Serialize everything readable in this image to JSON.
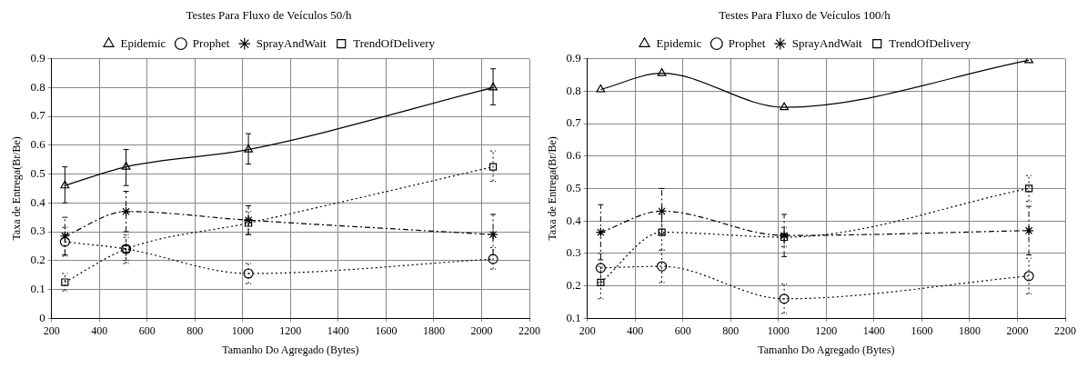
{
  "chart_data": [
    {
      "type": "line",
      "title": "Testes Para Fluxo de Veículos 50/h",
      "xlabel": "Tamanho Do Agregado (Bytes)",
      "ylabel": "Taxa de Entrega(Br/Be)",
      "x": [
        256,
        512,
        1024,
        2048
      ],
      "xlim": [
        200,
        2200
      ],
      "xticks": [
        200,
        400,
        600,
        800,
        1000,
        1200,
        1400,
        1600,
        1800,
        2000,
        2200
      ],
      "ylim": [
        0,
        0.9
      ],
      "yticks": [
        0,
        0.1,
        0.2,
        0.3,
        0.4,
        0.5,
        0.6,
        0.7,
        0.8,
        0.9
      ],
      "grid": true,
      "legend": "top",
      "series": [
        {
          "name": "Epidemic",
          "color": "#000000",
          "marker": "triangle",
          "line_style": "solid",
          "values": [
            0.46,
            0.525,
            0.585,
            0.8
          ],
          "errors": [
            [
              0.4,
              0.525
            ],
            [
              0.46,
              0.585
            ],
            [
              0.535,
              0.64
            ],
            [
              0.74,
              0.865
            ]
          ]
        },
        {
          "name": "Prophet",
          "color": "#000000",
          "marker": "circle",
          "line_style": "dotted",
          "values": [
            0.265,
            0.24,
            0.155,
            0.205
          ],
          "errors": [
            [
              0.215,
              0.315
            ],
            [
              0.19,
              0.29
            ],
            [
              0.12,
              0.19
            ],
            [
              0.17,
              0.245
            ]
          ]
        },
        {
          "name": "SprayAndWait",
          "color": "#000000",
          "marker": "cross",
          "line_style": "dashed",
          "values": [
            0.285,
            0.37,
            0.34,
            0.29
          ],
          "errors": [
            [
              0.22,
              0.35
            ],
            [
              0.3,
              0.44
            ],
            [
              0.29,
              0.39
            ],
            [
              0.22,
              0.36
            ]
          ]
        },
        {
          "name": "TrendOfDelivery",
          "color": "#000000",
          "marker": "square",
          "line_style": "dotted",
          "values": [
            0.125,
            0.24,
            0.33,
            0.525
          ],
          "errors": [
            [
              0.095,
              0.155
            ],
            [
              0.2,
              0.28
            ],
            [
              0.29,
              0.37
            ],
            [
              0.475,
              0.58
            ]
          ]
        }
      ]
    },
    {
      "type": "line",
      "title": "Testes Para Fluxo de Veículos 100/h",
      "xlabel": "Tamanho Do Agregado (Bytes)",
      "ylabel": "Taxa de Entrega(Br/Be)",
      "x": [
        256,
        512,
        1024,
        2048
      ],
      "xlim": [
        200,
        2200
      ],
      "xticks": [
        200,
        400,
        600,
        800,
        1000,
        1200,
        1400,
        1600,
        1800,
        2000,
        2200
      ],
      "ylim": [
        0.1,
        0.9
      ],
      "yticks": [
        0.1,
        0.2,
        0.3,
        0.4,
        0.5,
        0.6,
        0.7,
        0.8,
        0.9
      ],
      "grid": true,
      "legend": "top",
      "series": [
        {
          "name": "Epidemic",
          "color": "#000000",
          "marker": "triangle",
          "line_style": "solid",
          "values": [
            0.805,
            0.855,
            0.75,
            0.895
          ]
        },
        {
          "name": "Prophet",
          "color": "#000000",
          "marker": "circle",
          "line_style": "dotted",
          "values": [
            0.255,
            0.26,
            0.16,
            0.23
          ],
          "errors": [
            [
              0.21,
              0.3
            ],
            [
              0.21,
              0.31
            ],
            [
              0.115,
              0.205
            ],
            [
              0.175,
              0.285
            ]
          ]
        },
        {
          "name": "SprayAndWait",
          "color": "#000000",
          "marker": "cross",
          "line_style": "dashed",
          "values": [
            0.365,
            0.43,
            0.355,
            0.37
          ],
          "errors": [
            [
              0.28,
              0.45
            ],
            [
              0.36,
              0.5
            ],
            [
              0.29,
              0.42
            ],
            [
              0.295,
              0.445
            ]
          ]
        },
        {
          "name": "TrendOfDelivery",
          "color": "#000000",
          "marker": "square",
          "line_style": "dotted",
          "values": [
            0.21,
            0.365,
            0.35,
            0.5
          ],
          "errors": [
            [
              0.16,
              0.26
            ],
            [
              0.31,
              0.42
            ],
            [
              0.32,
              0.38
            ],
            [
              0.46,
              0.54
            ]
          ]
        }
      ]
    }
  ]
}
